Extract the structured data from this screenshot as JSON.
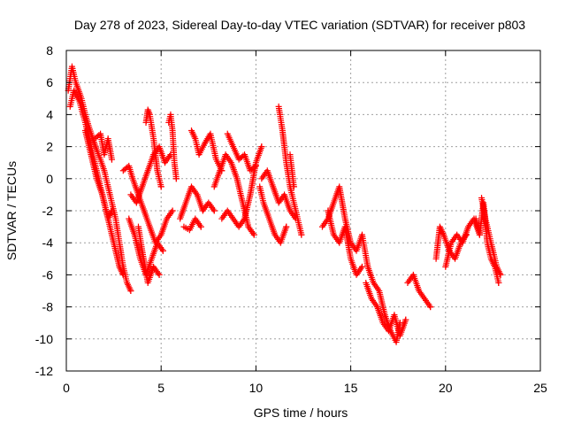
{
  "chart_data": {
    "type": "scatter",
    "title": "Day 278 of 2023, Sidereal Day-to-day VTEC variation (SDTVAR) for receiver p803",
    "xlabel": "GPS time / hours",
    "ylabel": "SDTVAR / TECUs",
    "xlim": [
      0,
      25
    ],
    "ylim": [
      -12,
      8
    ],
    "xticks": [
      0,
      5,
      10,
      15,
      20,
      25
    ],
    "yticks": [
      -12,
      -10,
      -8,
      -6,
      -4,
      -2,
      0,
      2,
      4,
      6,
      8
    ],
    "grid": true,
    "marker": "+",
    "color": "#ff0000",
    "series": [
      {
        "name": "SDTVAR",
        "tracks": [
          {
            "x": [
              0.1,
              0.3,
              0.5,
              0.8,
              1.0,
              1.2,
              1.4,
              1.6,
              1.8,
              2.0,
              2.2,
              2.4,
              2.6,
              2.8,
              3.0,
              3.2,
              3.4
            ],
            "y": [
              5.5,
              7.0,
              6.0,
              5.0,
              4.0,
              3.2,
              2.5,
              1.8,
              1.2,
              0.5,
              -0.5,
              -1.5,
              -2.5,
              -4.0,
              -5.5,
              -6.5,
              -7.0
            ]
          },
          {
            "x": [
              0.2,
              0.4,
              0.7,
              1.0,
              1.3,
              1.6,
              1.9,
              2.2,
              2.5,
              2.8,
              3.0
            ],
            "y": [
              4.5,
              5.5,
              4.8,
              3.5,
              2.0,
              0.5,
              -1.0,
              -2.5,
              -4.0,
              -5.5,
              -6.0
            ]
          },
          {
            "x": [
              1.0,
              1.3,
              1.6,
              1.9,
              2.2,
              2.4
            ],
            "y": [
              3.0,
              1.5,
              0.0,
              -1.0,
              -2.5,
              -2.0
            ]
          },
          {
            "x": [
              1.5,
              1.8,
              2.0,
              2.2,
              2.4
            ],
            "y": [
              2.5,
              2.8,
              1.5,
              2.5,
              1.2
            ]
          },
          {
            "x": [
              3.0,
              3.3,
              3.5,
              3.8,
              4.1,
              4.4,
              4.7,
              5.0,
              5.3,
              5.6
            ],
            "y": [
              0.5,
              0.8,
              0.0,
              -1.0,
              -2.0,
              -3.0,
              -4.0,
              -3.5,
              -2.5,
              -2.0
            ]
          },
          {
            "x": [
              3.3,
              3.6,
              3.9,
              4.2,
              4.5,
              4.8,
              5.1
            ],
            "y": [
              -2.5,
              -3.5,
              -5.0,
              -6.0,
              -5.0,
              -4.0,
              -4.5
            ]
          },
          {
            "x": [
              3.4,
              3.7,
              4.0,
              4.3,
              4.6,
              4.9,
              5.2,
              5.5
            ],
            "y": [
              -1.0,
              -1.5,
              -0.5,
              0.5,
              1.5,
              2.0,
              1.0,
              1.5
            ]
          },
          {
            "x": [
              4.2,
              4.3,
              4.4,
              4.6,
              4.8,
              5.0
            ],
            "y": [
              3.5,
              4.3,
              4.0,
              2.5,
              0.5,
              -0.5
            ]
          },
          {
            "x": [
              5.4,
              5.5,
              5.6,
              5.7,
              5.8
            ],
            "y": [
              3.5,
              4.0,
              3.0,
              1.0,
              0.0
            ]
          },
          {
            "x": [
              3.8,
              4.0,
              4.3,
              4.6,
              4.9
            ],
            "y": [
              -3.0,
              -4.5,
              -6.5,
              -5.5,
              -6.0
            ]
          },
          {
            "x": [
              6.0,
              6.3,
              6.6,
              6.9,
              7.2,
              7.5,
              7.8
            ],
            "y": [
              -2.5,
              -1.5,
              -0.5,
              -1.0,
              -2.0,
              -1.5,
              -2.0
            ]
          },
          {
            "x": [
              6.6,
              6.8,
              7.0,
              7.3,
              7.6,
              7.9,
              8.2
            ],
            "y": [
              3.0,
              2.5,
              1.5,
              2.2,
              2.8,
              1.2,
              0.5
            ]
          },
          {
            "x": [
              6.2,
              6.5,
              6.8,
              7.1
            ],
            "y": [
              -3.0,
              -3.2,
              -2.5,
              -3.0
            ]
          },
          {
            "x": [
              7.8,
              8.1,
              8.4,
              8.7,
              9.0,
              9.3,
              9.6,
              9.9
            ],
            "y": [
              -0.5,
              0.5,
              1.5,
              1.0,
              0.0,
              -1.5,
              -3.0,
              -3.5
            ]
          },
          {
            "x": [
              8.2,
              8.5,
              8.8,
              9.1,
              9.4,
              9.7,
              10.0,
              10.3
            ],
            "y": [
              -2.5,
              -2.0,
              -2.5,
              -3.0,
              -2.5,
              -1.0,
              1.0,
              2.0
            ]
          },
          {
            "x": [
              8.5,
              8.8,
              9.1,
              9.4,
              9.7,
              10.0
            ],
            "y": [
              2.8,
              2.0,
              1.2,
              1.5,
              0.5,
              0.8
            ]
          },
          {
            "x": [
              10.2,
              10.4,
              10.7,
              11.0,
              11.3,
              11.6
            ],
            "y": [
              -0.5,
              -1.5,
              -2.5,
              -3.5,
              -4.0,
              -3.0
            ]
          },
          {
            "x": [
              11.2,
              11.4,
              11.6,
              11.8,
              12.0,
              12.2,
              12.4
            ],
            "y": [
              4.5,
              3.0,
              1.0,
              -0.5,
              -1.5,
              -2.5,
              -3.5
            ]
          },
          {
            "x": [
              10.3,
              10.6,
              10.9,
              11.2,
              11.5,
              11.8,
              12.1
            ],
            "y": [
              0.0,
              0.5,
              -0.5,
              -1.5,
              -1.0,
              -2.0,
              -2.5
            ]
          },
          {
            "x": [
              11.8,
              11.9,
              12.0
            ],
            "y": [
              1.5,
              0.5,
              -0.5
            ]
          },
          {
            "x": [
              13.5,
              13.8,
              14.1,
              14.4,
              14.7,
              15.0,
              15.3,
              15.6,
              15.9,
              16.2,
              16.5,
              16.8,
              17.1,
              17.4,
              17.6
            ],
            "y": [
              -3.0,
              -2.5,
              -1.5,
              -0.5,
              -2.5,
              -4.0,
              -4.5,
              -3.5,
              -5.5,
              -6.5,
              -7.0,
              -8.5,
              -9.5,
              -10.2,
              -9.0
            ]
          },
          {
            "x": [
              13.8,
              14.1,
              14.4,
              14.7,
              15.0,
              15.3,
              15.6
            ],
            "y": [
              -2.0,
              -3.5,
              -4.0,
              -3.0,
              -5.0,
              -6.0,
              -5.5
            ]
          },
          {
            "x": [
              15.8,
              16.1,
              16.4,
              16.7,
              17.0,
              17.3,
              17.6,
              17.9
            ],
            "y": [
              -6.5,
              -7.5,
              -8.0,
              -9.0,
              -9.5,
              -8.5,
              -9.8,
              -8.8
            ]
          },
          {
            "x": [
              18.0,
              18.3,
              18.6,
              18.9,
              19.2
            ],
            "y": [
              -6.5,
              -6.0,
              -7.0,
              -7.5,
              -8.0
            ]
          },
          {
            "x": [
              19.5,
              19.7,
              19.9,
              20.2,
              20.5,
              20.8,
              21.1
            ],
            "y": [
              -5.0,
              -3.0,
              -3.5,
              -4.5,
              -5.0,
              -4.0,
              -3.5
            ]
          },
          {
            "x": [
              20.0,
              20.3,
              20.6,
              20.9,
              21.2,
              21.5,
              21.8
            ],
            "y": [
              -5.5,
              -4.0,
              -3.5,
              -4.0,
              -3.0,
              -2.5,
              -3.5
            ]
          },
          {
            "x": [
              21.6,
              21.8,
              22.0,
              22.2,
              22.4,
              22.6,
              22.8
            ],
            "y": [
              -2.5,
              -3.5,
              -1.5,
              -4.0,
              -5.0,
              -5.5,
              -6.5
            ]
          },
          {
            "x": [
              21.9,
              22.1,
              22.3,
              22.5,
              22.7,
              22.9
            ],
            "y": [
              -1.2,
              -2.5,
              -3.5,
              -4.5,
              -5.5,
              -6.0
            ]
          }
        ]
      }
    ]
  }
}
